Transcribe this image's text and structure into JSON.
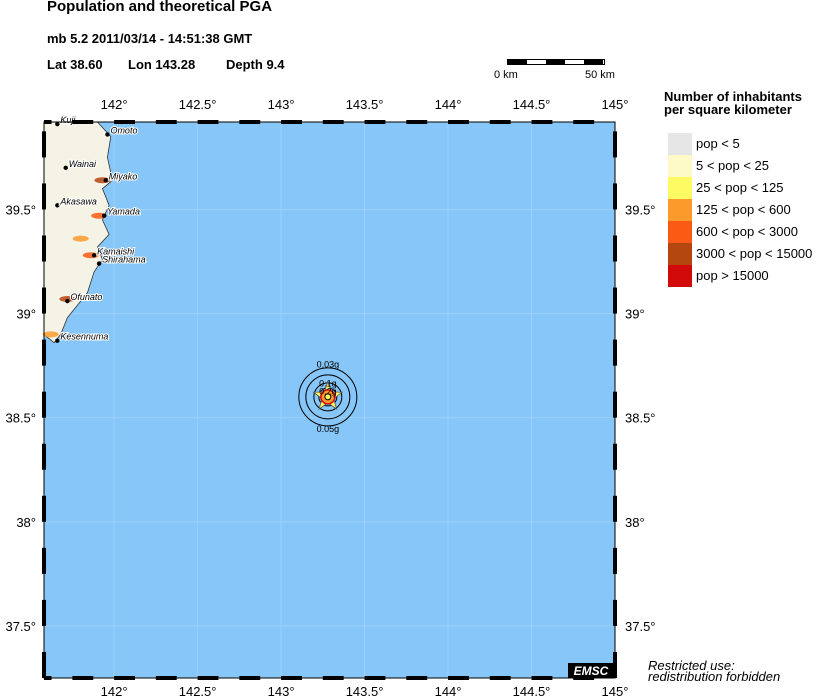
{
  "header": {
    "title": "Population and theoretical PGA",
    "event_line": "mb 5.2  2011/03/14 - 14:51:38 GMT",
    "lat_label": "Lat 38.60",
    "lon_label": "Lon 143.28",
    "depth_label": "Depth  9.4"
  },
  "scale_bar": {
    "start": "0 km",
    "end": "50 km"
  },
  "map": {
    "ocean_color": "#87c6f8",
    "lon_ticks": [
      "142°",
      "142.5°",
      "143°",
      "143.5°",
      "144°",
      "144.5°",
      "145°"
    ],
    "lon_values": [
      142,
      142.5,
      143,
      143.5,
      144,
      144.5,
      145
    ],
    "lat_ticks": [
      "39.5°",
      "39°",
      "38.5°",
      "38°",
      "37.5°"
    ],
    "lat_values": [
      39.5,
      39,
      38.5,
      38,
      37.5
    ],
    "extent": {
      "lon": [
        141.58,
        145
      ],
      "lat": [
        37.25,
        39.92
      ]
    },
    "epicenter": {
      "lon": 143.28,
      "lat": 38.6
    },
    "pga_labels": [
      {
        "text": "0.03g",
        "lon": 143.28,
        "lat": 38.76
      },
      {
        "text": "0.1g",
        "lon": 143.28,
        "lat": 38.67
      },
      {
        "text": "0.2g",
        "lon": 143.28,
        "lat": 38.63
      },
      {
        "text": "0.05g",
        "lon": 143.28,
        "lat": 38.45
      }
    ],
    "cities": [
      {
        "name": "Kuji",
        "lon": 141.66,
        "lat": 39.91
      },
      {
        "name": "Omoto",
        "lon": 141.96,
        "lat": 39.86
      },
      {
        "name": "Wainai",
        "lon": 141.71,
        "lat": 39.7
      },
      {
        "name": "Miyako",
        "lon": 141.95,
        "lat": 39.64
      },
      {
        "name": "Akasawa",
        "lon": 141.66,
        "lat": 39.52
      },
      {
        "name": "Yamada",
        "lon": 141.94,
        "lat": 39.47
      },
      {
        "name": "Kamaishi",
        "lon": 141.88,
        "lat": 39.28
      },
      {
        "name": "Shirahama",
        "lon": 141.91,
        "lat": 39.24
      },
      {
        "name": "Ofunato",
        "lon": 141.72,
        "lat": 39.06
      },
      {
        "name": "Kesennuma",
        "lon": 141.66,
        "lat": 38.87
      }
    ],
    "logo": "EMSC"
  },
  "legend": {
    "title_line1": "Number of inhabitants",
    "title_line2": "per square kilometer",
    "items": [
      {
        "label": "pop < 5",
        "color": "#e6e6e6"
      },
      {
        "label": "5 < pop < 25",
        "color": "#fefac8"
      },
      {
        "label": "25 < pop < 125",
        "color": "#fefa64"
      },
      {
        "label": "125 < pop < 600",
        "color": "#fc9b2c"
      },
      {
        "label": "600 < pop < 3000",
        "color": "#fa5a14"
      },
      {
        "label": "3000 < pop < 15000",
        "color": "#b4460f"
      },
      {
        "label": "pop > 15000",
        "color": "#d20a0a"
      }
    ]
  },
  "footer": {
    "line1": "Restricted use:",
    "line2": "redistribution forbidden"
  }
}
